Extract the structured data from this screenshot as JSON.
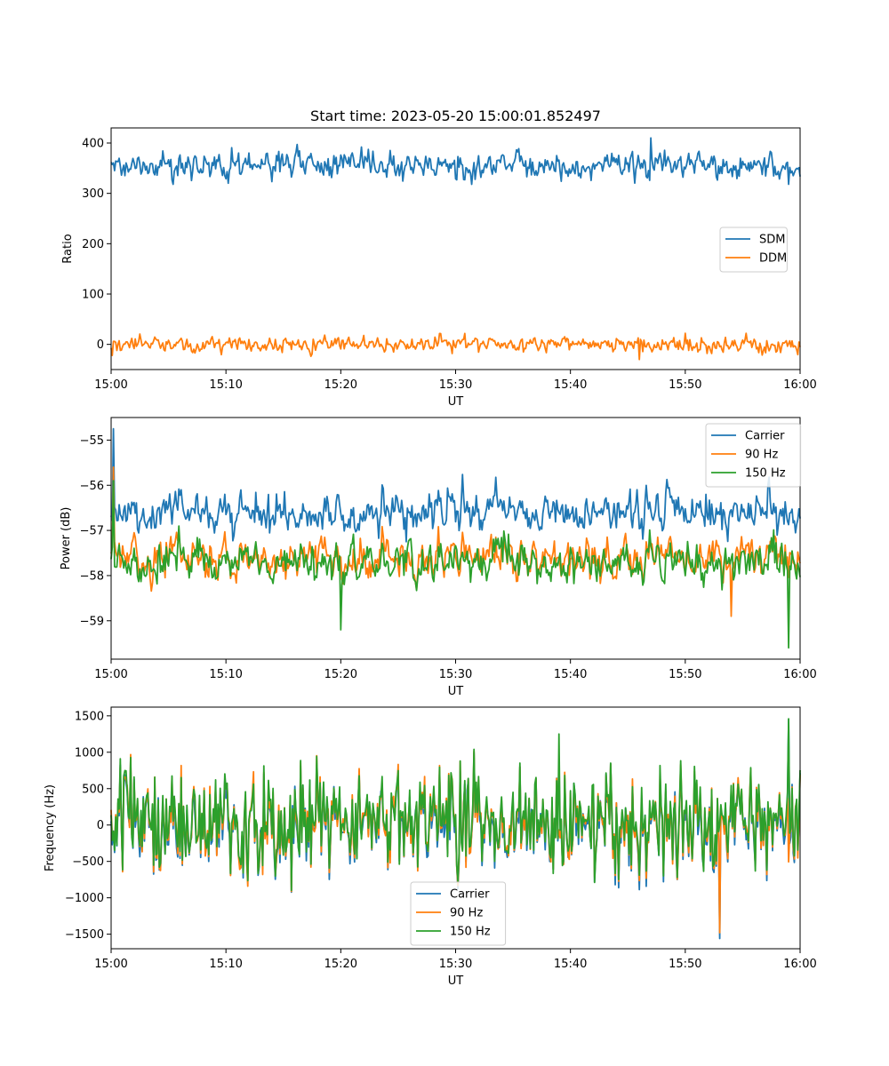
{
  "figure": {
    "title": "Start time: 2023-05-20 15:00:01.852497"
  },
  "colors": {
    "c0": "#1f77b4",
    "c1": "#ff7f0e",
    "c2": "#2ca02c",
    "legend_frame": "#cccccc"
  },
  "chart_data": [
    {
      "type": "line",
      "name": "ratio-panel",
      "xlabel": "UT",
      "ylabel": "Ratio",
      "x_ticks": [
        "15:00",
        "15:10",
        "15:20",
        "15:30",
        "15:40",
        "15:50",
        "16:00"
      ],
      "xlim": [
        "15:00",
        "16:00"
      ],
      "ylim": [
        -50,
        430
      ],
      "y_ticks": [
        0,
        100,
        200,
        300,
        400
      ],
      "legend": "center-right",
      "grid": false,
      "series": [
        {
          "name": "SDM",
          "color": "#1f77b4",
          "mean": 355,
          "spread": 14,
          "approx_range": [
            318,
            410
          ],
          "spikes": [
            {
              "t": "15:47",
              "v": 410
            },
            {
              "t": "15:59",
              "v": 318
            }
          ]
        },
        {
          "name": "DDM",
          "color": "#ff7f0e",
          "mean": 0,
          "spread": 8,
          "approx_range": [
            -30,
            22
          ],
          "spikes": [
            {
              "t": "15:46",
              "v": -30
            },
            {
              "t": "15:50",
              "v": 22
            }
          ]
        }
      ]
    },
    {
      "type": "line",
      "name": "power-panel",
      "xlabel": "UT",
      "ylabel": "Power (dB)",
      "x_ticks": [
        "15:00",
        "15:10",
        "15:20",
        "15:30",
        "15:40",
        "15:50",
        "16:00"
      ],
      "xlim": [
        "15:00",
        "16:00"
      ],
      "ylim": [
        -59.85,
        -54.5
      ],
      "y_ticks": [
        -55,
        -56,
        -57,
        -58,
        -59
      ],
      "legend": "upper-right",
      "grid": false,
      "series": [
        {
          "name": "Carrier",
          "color": "#1f77b4",
          "mean": -56.6,
          "spread": 0.35,
          "approx_range": [
            -57.4,
            -54.75
          ],
          "spikes": [
            {
              "t": "15:00",
              "v": -54.75
            }
          ]
        },
        {
          "name": "90 Hz",
          "color": "#ff7f0e",
          "mean": -57.6,
          "spread": 0.35,
          "approx_range": [
            -59.1,
            -55.6
          ],
          "spikes": [
            {
              "t": "15:00",
              "v": -55.6
            },
            {
              "t": "15:54",
              "v": -58.9
            }
          ]
        },
        {
          "name": "150 Hz",
          "color": "#2ca02c",
          "mean": -57.7,
          "spread": 0.35,
          "approx_range": [
            -59.6,
            -55.9
          ],
          "spikes": [
            {
              "t": "15:00",
              "v": -55.9
            },
            {
              "t": "15:20",
              "v": -59.2
            },
            {
              "t": "15:59",
              "v": -59.6
            }
          ]
        }
      ]
    },
    {
      "type": "line",
      "name": "frequency-panel",
      "xlabel": "UT",
      "ylabel": "Frequency (Hz)",
      "x_ticks": [
        "15:00",
        "15:10",
        "15:20",
        "15:30",
        "15:40",
        "15:50",
        "16:00"
      ],
      "xlim": [
        "15:00",
        "16:00"
      ],
      "ylim": [
        -1700,
        1620
      ],
      "y_ticks": [
        1500,
        1000,
        500,
        0,
        -500,
        -1000,
        -1500
      ],
      "legend": "lower-center",
      "grid": false,
      "series": [
        {
          "name": "Carrier",
          "color": "#1f77b4",
          "mean": 0,
          "spread": 380,
          "approx_range": [
            -1560,
            1450
          ],
          "spikes": [
            {
              "t": "15:53",
              "v": -1560
            },
            {
              "t": "15:59",
              "v": 1450
            }
          ]
        },
        {
          "name": "90 Hz",
          "color": "#ff7f0e",
          "mean": 30,
          "spread": 380,
          "approx_range": [
            -1480,
            1450
          ],
          "spikes": [
            {
              "t": "15:53",
              "v": -1480
            }
          ]
        },
        {
          "name": "150 Hz",
          "color": "#2ca02c",
          "mean": 60,
          "spread": 380,
          "approx_range": [
            -1440,
            1460
          ],
          "spikes": [
            {
              "t": "15:59",
              "v": 1460
            },
            {
              "t": "15:39",
              "v": 1250
            }
          ]
        }
      ]
    }
  ]
}
